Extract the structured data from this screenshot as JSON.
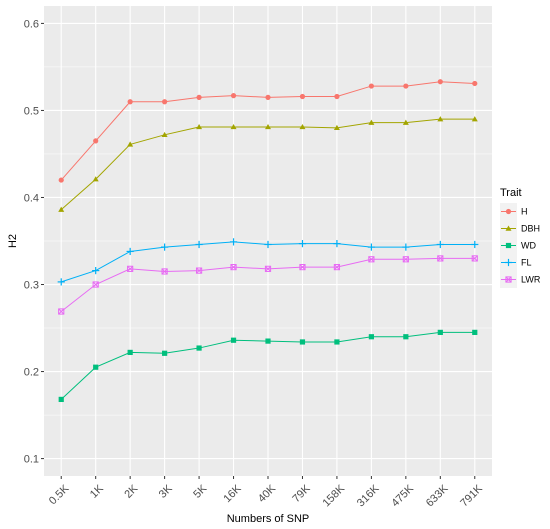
{
  "chart_data": {
    "type": "line",
    "xlabel": "Numbers of SNP",
    "ylabel": "H2",
    "ylim": [
      0.08,
      0.62
    ],
    "y_ticks": [
      "0.1",
      "0.2",
      "0.3",
      "0.4",
      "0.5",
      "0.6"
    ],
    "grid": true,
    "legend": {
      "title": "Trait",
      "placement": "right"
    },
    "categories": [
      "0.5K",
      "1K",
      "2K",
      "3K",
      "5K",
      "16K",
      "40K",
      "79K",
      "158K",
      "316K",
      "475K",
      "633K",
      "791K"
    ],
    "series": [
      {
        "name": "H",
        "color": "#F8766D",
        "marker": "circle",
        "values": [
          0.42,
          0.465,
          0.51,
          0.51,
          0.515,
          0.517,
          0.515,
          0.516,
          0.516,
          0.528,
          0.528,
          0.533,
          0.531
        ]
      },
      {
        "name": "DBH",
        "color": "#A3A500",
        "marker": "triangle",
        "values": [
          0.386,
          0.421,
          0.461,
          0.472,
          0.481,
          0.481,
          0.481,
          0.481,
          0.48,
          0.486,
          0.486,
          0.49,
          0.49
        ]
      },
      {
        "name": "WD",
        "color": "#00BF7D",
        "marker": "square",
        "values": [
          0.168,
          0.205,
          0.222,
          0.221,
          0.227,
          0.236,
          0.235,
          0.234,
          0.234,
          0.24,
          0.24,
          0.245,
          0.245
        ]
      },
      {
        "name": "FL",
        "color": "#00B0F6",
        "marker": "plus",
        "values": [
          0.303,
          0.316,
          0.338,
          0.343,
          0.346,
          0.349,
          0.346,
          0.347,
          0.347,
          0.343,
          0.343,
          0.346,
          0.346
        ]
      },
      {
        "name": "LWR",
        "color": "#E76BF3",
        "marker": "boxx",
        "values": [
          0.269,
          0.3,
          0.318,
          0.315,
          0.316,
          0.32,
          0.318,
          0.32,
          0.32,
          0.329,
          0.329,
          0.33,
          0.33
        ]
      }
    ]
  }
}
